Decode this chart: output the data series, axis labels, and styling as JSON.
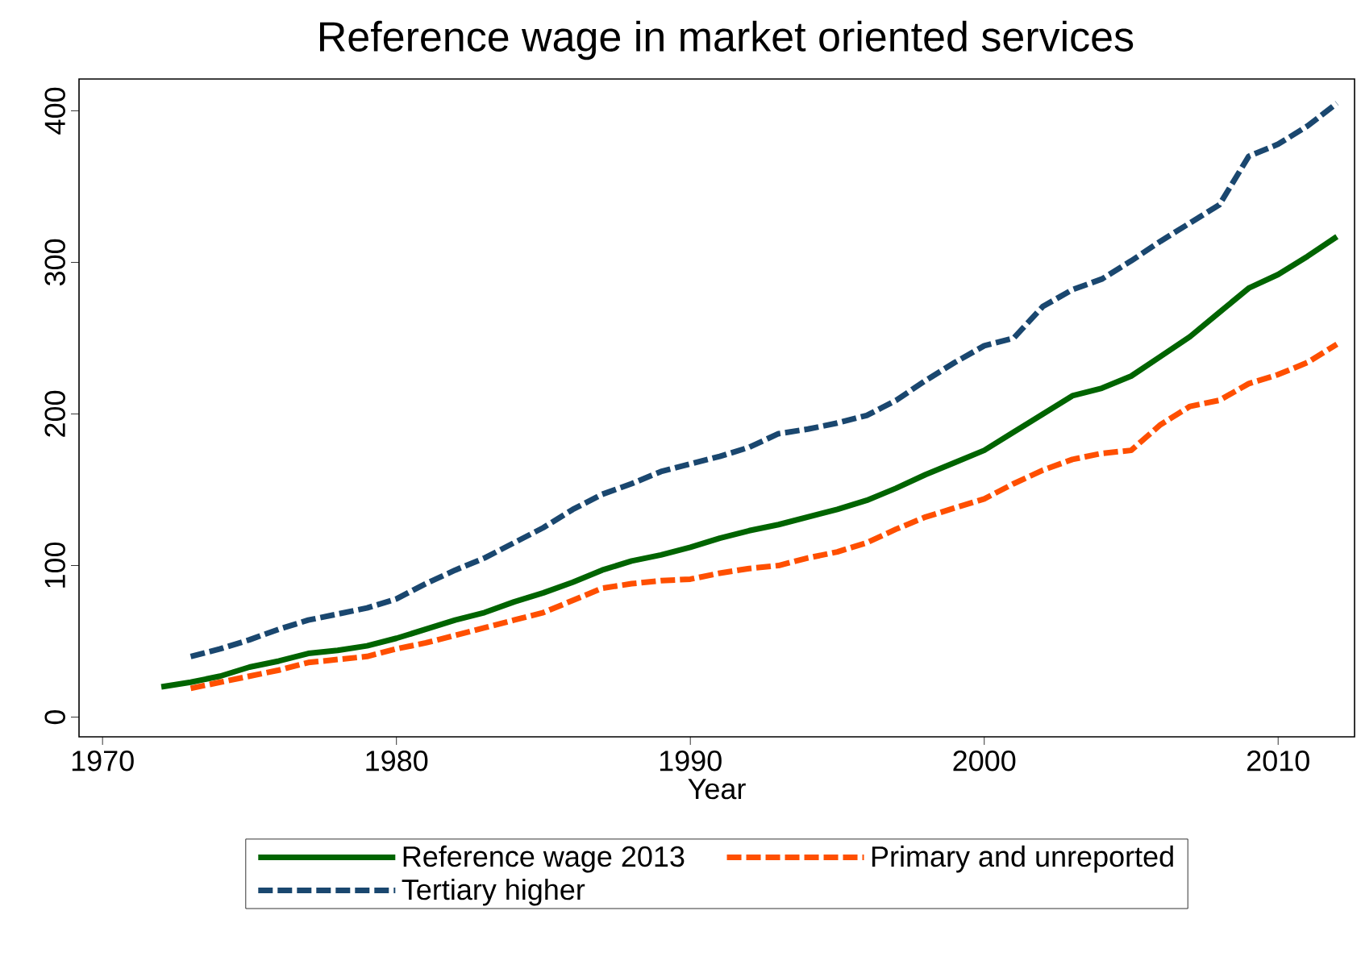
{
  "chart_data": {
    "type": "line",
    "title": "Reference wage in market oriented services",
    "xlabel": "Year",
    "xlim": [
      1969.2,
      2012.6
    ],
    "xticks": [
      1970,
      1980,
      1990,
      2000,
      2010
    ],
    "ylim": [
      -13,
      421
    ],
    "yticks": [
      0,
      100,
      200,
      300,
      400
    ],
    "legend": "bottom",
    "grid": false,
    "series": [
      {
        "name": "Reference wage 2013",
        "color": "#006400",
        "line_style": "solid",
        "x": [
          1972,
          1973,
          1974,
          1975,
          1976,
          1977,
          1978,
          1979,
          1980,
          1981,
          1982,
          1983,
          1984,
          1985,
          1986,
          1987,
          1988,
          1989,
          1990,
          1991,
          1992,
          1993,
          1994,
          1995,
          1996,
          1997,
          1998,
          1999,
          2000,
          2001,
          2002,
          2003,
          2004,
          2005,
          2006,
          2007,
          2008,
          2009,
          2010,
          2011,
          2012
        ],
        "values": [
          20,
          23,
          27,
          33,
          37,
          42,
          44,
          47,
          52,
          58,
          64,
          69,
          76,
          82,
          89,
          97,
          103,
          107,
          112,
          118,
          123,
          127,
          132,
          137,
          143,
          151,
          160,
          168,
          176,
          188,
          200,
          212,
          217,
          225,
          238,
          251,
          267,
          283,
          292,
          304,
          317
        ]
      },
      {
        "name": "Primary and unreported",
        "color": "#ff4f00",
        "line_style": "dashed",
        "x": [
          1973,
          1974,
          1975,
          1976,
          1977,
          1978,
          1979,
          1980,
          1981,
          1982,
          1983,
          1984,
          1985,
          1986,
          1987,
          1988,
          1989,
          1990,
          1991,
          1992,
          1993,
          1994,
          1995,
          1996,
          1997,
          1998,
          1999,
          2000,
          2001,
          2002,
          2003,
          2004,
          2005,
          2006,
          2007,
          2008,
          2009,
          2010,
          2011,
          2012
        ],
        "values": [
          19,
          23,
          27,
          31,
          36,
          38,
          40,
          45,
          49,
          54,
          59,
          64,
          69,
          77,
          85,
          88,
          90,
          91,
          95,
          98,
          100,
          105,
          109,
          115,
          124,
          132,
          138,
          144,
          154,
          163,
          170,
          174,
          176,
          193,
          205,
          209,
          220,
          226,
          234,
          246
        ]
      },
      {
        "name": "Tertiary higher",
        "color": "#1a476f",
        "line_style": "dashed",
        "x": [
          1973,
          1974,
          1975,
          1976,
          1977,
          1978,
          1979,
          1980,
          1981,
          1982,
          1983,
          1984,
          1985,
          1986,
          1987,
          1988,
          1989,
          1990,
          1991,
          1992,
          1993,
          1994,
          1995,
          1996,
          1997,
          1998,
          1999,
          2000,
          2001,
          2002,
          2003,
          2004,
          2005,
          2006,
          2007,
          2008,
          2009,
          2010,
          2011,
          2012
        ],
        "values": [
          40,
          45,
          51,
          58,
          64,
          68,
          72,
          78,
          88,
          97,
          105,
          115,
          125,
          137,
          147,
          154,
          162,
          167,
          172,
          178,
          187,
          190,
          194,
          199,
          209,
          222,
          234,
          245,
          250,
          271,
          282,
          289,
          301,
          314,
          326,
          338,
          370,
          378,
          390,
          405
        ]
      }
    ]
  }
}
